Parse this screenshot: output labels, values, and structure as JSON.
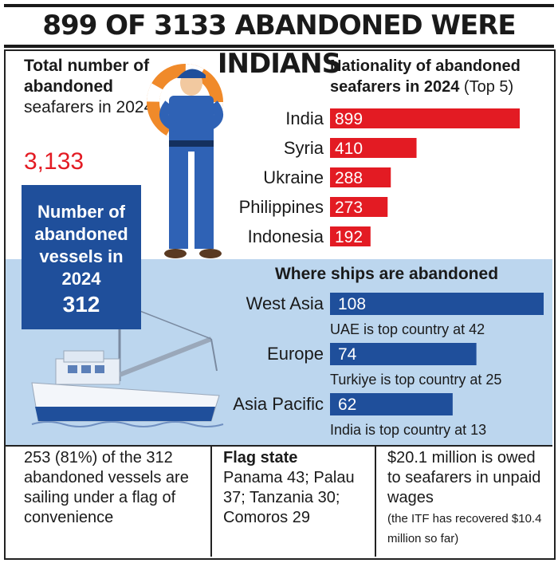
{
  "headline": "899 OF 3133 ABANDONED WERE INDIANS",
  "total": {
    "label_bold": "Total number of abandoned",
    "label_rest": "seafarers in 2024",
    "value": "3,133"
  },
  "vessels": {
    "label": "Number of abandoned vessels in 2024",
    "value": "312"
  },
  "nationality": {
    "title_bold": "Nationality of abandoned seafarers in 2024",
    "title_rest": "(Top 5)"
  },
  "regions": {
    "title": "Where ships are abandoned",
    "notes": [
      "UAE is top country at 42",
      "Turkiye is top country at 25",
      "India is top country at 13"
    ]
  },
  "bottom": {
    "convenience": "253 (81%) of the 312 abandoned vessels are sailing under a flag of convenience",
    "flag_title": "Flag state",
    "flag_text": "Panama 43; Palau 37; Tanzania 30; Comoros 29",
    "wages": "$20.1 million is owed to seafarers in unpaid wages",
    "wages_note": "(the ITF has recovered $10.4 million so far)"
  },
  "colors": {
    "red": "#e31b23",
    "blue": "#1f4f9b",
    "band": "#bcd6ee"
  },
  "chart_data": [
    {
      "type": "bar",
      "orientation": "horizontal",
      "title": "Nationality of abandoned seafarers in 2024 (Top 5)",
      "categories": [
        "India",
        "Syria",
        "Ukraine",
        "Philippines",
        "Indonesia"
      ],
      "values": [
        899,
        410,
        288,
        273,
        192
      ],
      "color": "#e31b23"
    },
    {
      "type": "bar",
      "orientation": "horizontal",
      "title": "Where ships are abandoned",
      "categories": [
        "West Asia",
        "Europe",
        "Asia Pacific"
      ],
      "values": [
        108,
        74,
        62
      ],
      "color": "#1f4f9b"
    }
  ]
}
